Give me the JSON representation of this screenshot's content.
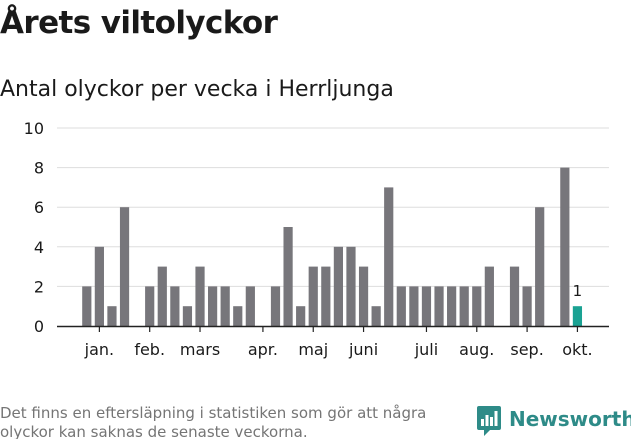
{
  "header": {
    "title": "Årets viltolyckor",
    "subtitle": "Antal olyckor per vecka i Herrljunga"
  },
  "footer": {
    "note": "Det finns en eftersläpning i statistiken som gör att några olyckor kan saknas de senaste veckorna.",
    "brand": "Newsworthy",
    "brand_icon": "newsworthy-logo-icon"
  },
  "colors": {
    "bar": "#77767b",
    "highlight": "#1aa293",
    "grid": "#dddddd",
    "axis": "#222222",
    "brand": "#2e8b88"
  },
  "chart_data": {
    "type": "bar",
    "title": "Antal olyckor per vecka i Herrljunga",
    "xlabel": "",
    "ylabel": "",
    "ylim": [
      0,
      10
    ],
    "yticks": [
      0,
      2,
      4,
      6,
      8,
      10
    ],
    "grid": true,
    "weeks": [
      1,
      2,
      3,
      4,
      5,
      6,
      7,
      8,
      9,
      10,
      11,
      12,
      13,
      14,
      15,
      16,
      17,
      18,
      19,
      20,
      21,
      22,
      23,
      24,
      25,
      26,
      27,
      28,
      29,
      30,
      31,
      32,
      33,
      34,
      35,
      36,
      37,
      38,
      39,
      40,
      41
    ],
    "values": [
      2,
      4,
      1,
      6,
      0,
      2,
      3,
      2,
      1,
      3,
      2,
      2,
      1,
      2,
      0,
      2,
      5,
      1,
      3,
      3,
      4,
      4,
      3,
      1,
      7,
      2,
      2,
      2,
      2,
      2,
      2,
      2,
      3,
      0,
      3,
      2,
      6,
      0,
      8,
      1,
      0
    ],
    "highlight_index": 39,
    "data_labels": [
      {
        "index": 39,
        "text": "1"
      }
    ],
    "month_labels": [
      {
        "label": "jan.",
        "position": 1.5
      },
      {
        "label": "feb.",
        "position": 5.5
      },
      {
        "label": "mars",
        "position": 9.5
      },
      {
        "label": "apr.",
        "position": 14.5
      },
      {
        "label": "maj",
        "position": 18.5
      },
      {
        "label": "juni",
        "position": 22.5
      },
      {
        "label": "juli",
        "position": 27.5
      },
      {
        "label": "aug.",
        "position": 31.5
      },
      {
        "label": "sep.",
        "position": 35.5
      },
      {
        "label": "okt.",
        "position": 39.5
      }
    ]
  }
}
